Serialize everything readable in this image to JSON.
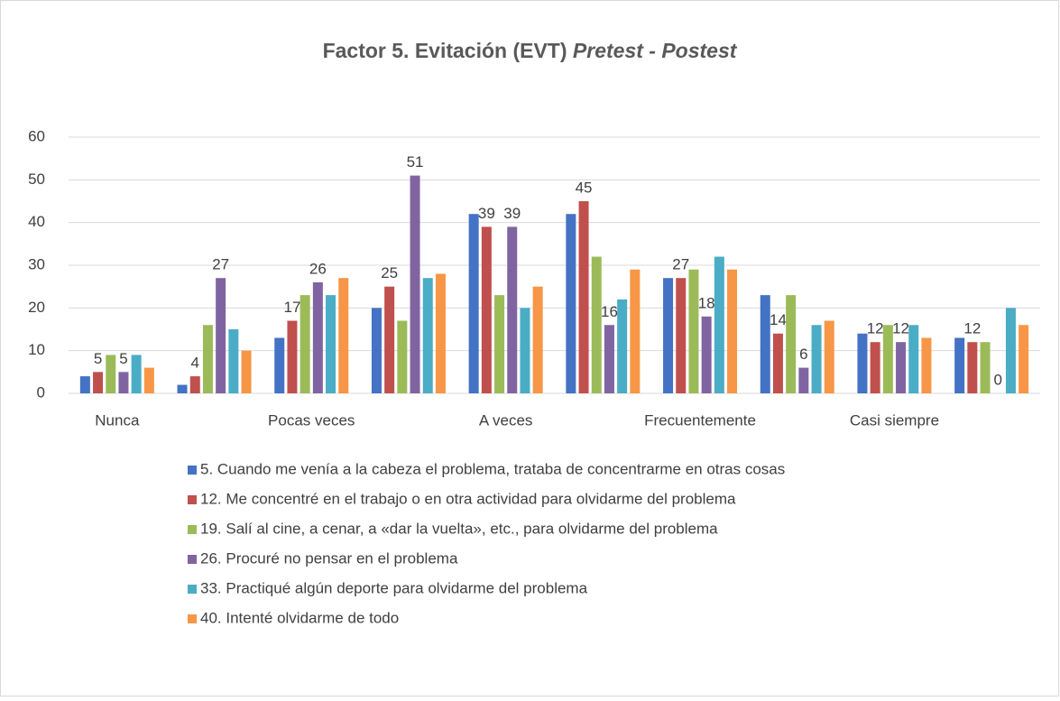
{
  "chart_data": {
    "type": "bar",
    "title": "Factor 5. Evitación (EVT)",
    "title_italic": "Pretest - Postest",
    "categories": [
      "Nunca",
      null,
      "Pocas veces",
      null,
      "A veces",
      null,
      "Frecuentemente",
      null,
      "Casi siempre",
      null
    ],
    "series": [
      {
        "name": "5. Cuando me venía a la cabeza el problema, trataba de concentrarme en otras cosas",
        "color": "#4472c4",
        "values": [
          4,
          2,
          13,
          20,
          42,
          42,
          27,
          23,
          14,
          13
        ]
      },
      {
        "name": "12. Me concentré en el trabajo o en otra actividad para olvidarme del problema",
        "color": "#c0504d",
        "values": [
          5,
          4,
          17,
          25,
          39,
          45,
          27,
          14,
          12,
          12
        ],
        "data_labels": true
      },
      {
        "name": "19. Salí al cine, a cenar, a «dar la vuelta», etc., para olvidarme del problema",
        "color": "#9bbb59",
        "values": [
          9,
          16,
          23,
          17,
          23,
          32,
          29,
          23,
          16,
          12
        ]
      },
      {
        "name": "26. Procuré no pensar en el problema",
        "color": "#8064a2",
        "values": [
          5,
          27,
          26,
          51,
          39,
          16,
          18,
          6,
          12,
          0
        ],
        "data_labels": true
      },
      {
        "name": "33. Practiqué algún deporte para olvidarme del problema",
        "color": "#4bacc6",
        "values": [
          9,
          15,
          23,
          27,
          20,
          22,
          32,
          16,
          16,
          20
        ]
      },
      {
        "name": "40. Intenté olvidarme de todo",
        "color": "#f79646",
        "values": [
          6,
          10,
          27,
          28,
          25,
          29,
          29,
          17,
          13,
          16
        ]
      }
    ],
    "ylim": [
      0,
      60
    ],
    "yticks": [
      0,
      10,
      20,
      30,
      40,
      50,
      60
    ],
    "grid": true,
    "legend": "bottom"
  }
}
